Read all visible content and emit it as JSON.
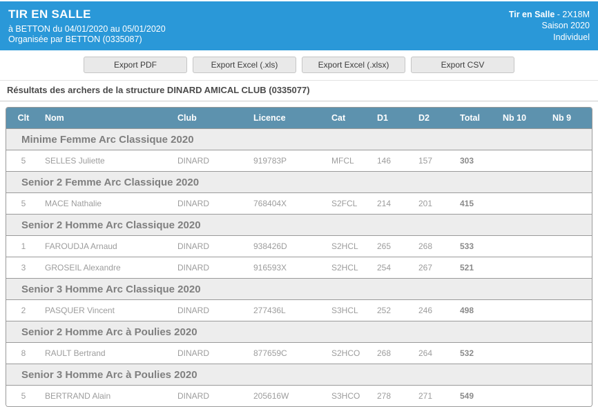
{
  "header": {
    "title": "TIR EN SALLE",
    "location_dates": "à BETTON du 04/01/2020 au 05/01/2020",
    "organizer": "Organisée par BETTON (0335087)",
    "right_line1_bold": "Tir en Salle",
    "right_line1_rest": " - 2X18M",
    "right_line2": "Saison 2020",
    "right_line3": "Individuel",
    "bg_color": "#2a98d8"
  },
  "toolbar": {
    "export_pdf_label": "Export PDF",
    "export_xls_label": "Export Excel (.xls)",
    "export_xlsx_label": "Export Excel (.xlsx)",
    "export_csv_label": "Export CSV"
  },
  "results_title": "Résultats des archers de la structure DINARD AMICAL CLUB (0335077)",
  "table": {
    "header_bg": "#5d92ae",
    "columns": [
      "Clt",
      "Nom",
      "Club",
      "Licence",
      "Cat",
      "D1",
      "D2",
      "Total",
      "Nb 10",
      "Nb 9"
    ],
    "column_keys": [
      "clt",
      "nom",
      "club",
      "licence",
      "cat",
      "d1",
      "d2",
      "total",
      "nb10",
      "nb9"
    ],
    "groups": [
      {
        "label": "Minime Femme Arc Classique 2020",
        "rows": [
          [
            "5",
            "SELLES Juliette",
            "DINARD",
            "919783P",
            "MFCL",
            "146",
            "157",
            "303",
            "",
            ""
          ]
        ]
      },
      {
        "label": "Senior 2 Femme Arc Classique 2020",
        "rows": [
          [
            "5",
            "MACE Nathalie",
            "DINARD",
            "768404X",
            "S2FCL",
            "214",
            "201",
            "415",
            "",
            ""
          ]
        ]
      },
      {
        "label": "Senior 2 Homme Arc Classique 2020",
        "rows": [
          [
            "1",
            "FAROUDJA Arnaud",
            "DINARD",
            "938426D",
            "S2HCL",
            "265",
            "268",
            "533",
            "",
            ""
          ],
          [
            "3",
            "GROSEIL Alexandre",
            "DINARD",
            "916593X",
            "S2HCL",
            "254",
            "267",
            "521",
            "",
            ""
          ]
        ]
      },
      {
        "label": "Senior 3 Homme Arc Classique 2020",
        "rows": [
          [
            "2",
            "PASQUER Vincent",
            "DINARD",
            "277436L",
            "S3HCL",
            "252",
            "246",
            "498",
            "",
            ""
          ]
        ]
      },
      {
        "label": "Senior 2 Homme Arc à Poulies 2020",
        "rows": [
          [
            "8",
            "RAULT Bertrand",
            "DINARD",
            "877659C",
            "S2HCO",
            "268",
            "264",
            "532",
            "",
            ""
          ]
        ]
      },
      {
        "label": "Senior 3 Homme Arc à Poulies 2020",
        "rows": [
          [
            "5",
            "BERTRAND Alain",
            "DINARD",
            "205616W",
            "S3HCO",
            "278",
            "271",
            "549",
            "",
            ""
          ]
        ]
      }
    ]
  }
}
